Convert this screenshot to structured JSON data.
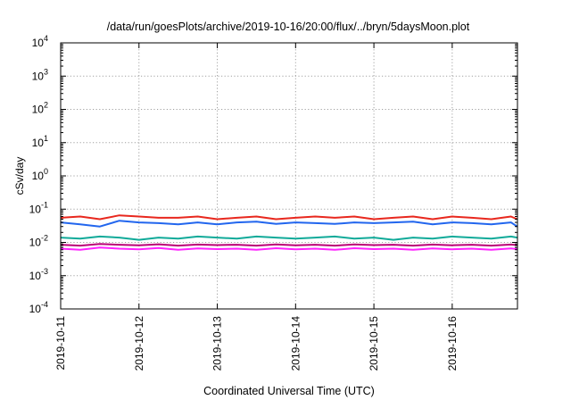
{
  "chart_data": {
    "type": "line",
    "title": "/data/run/goesPlots/archive/2019-10-16/20:00/flux/../bryn/5daysMoon.plot",
    "xlabel": "Coordinated Universal Time (UTC)",
    "ylabel": "cSv/day",
    "x_range": [
      "2019-10-11",
      "2019-10-16T20:00"
    ],
    "x_ticks": [
      "2019-10-11",
      "2019-10-12",
      "2019-10-13",
      "2019-10-14",
      "2019-10-15",
      "2019-10-16"
    ],
    "y_scale": "log",
    "ylim": [
      0.0001,
      10000
    ],
    "y_ticks": [
      {
        "base": "10",
        "exp": "4"
      },
      {
        "base": "10",
        "exp": "3"
      },
      {
        "base": "10",
        "exp": "2"
      },
      {
        "base": "10",
        "exp": "1"
      },
      {
        "base": "10",
        "exp": "0"
      },
      {
        "base": "10",
        "exp": "-1"
      },
      {
        "base": "10",
        "exp": "-2"
      },
      {
        "base": "10",
        "exp": "-3"
      },
      {
        "base": "10",
        "exp": "-4"
      }
    ],
    "grid": true,
    "legend": "none",
    "sample_days": [
      0,
      0.25,
      0.5,
      0.75,
      1,
      1.25,
      1.5,
      1.75,
      2,
      2.25,
      2.5,
      2.75,
      3,
      3.25,
      3.5,
      3.75,
      4,
      4.25,
      4.5,
      4.75,
      5,
      5.25,
      5.5,
      5.75,
      5.83
    ],
    "series": [
      {
        "color": "#e8281e",
        "values": [
          0.055,
          0.06,
          0.05,
          0.065,
          0.06,
          0.055,
          0.055,
          0.06,
          0.05,
          0.055,
          0.06,
          0.05,
          0.055,
          0.06,
          0.055,
          0.06,
          0.05,
          0.055,
          0.06,
          0.05,
          0.06,
          0.055,
          0.05,
          0.06,
          0.05
        ]
      },
      {
        "color": "#2266ee",
        "values": [
          0.04,
          0.035,
          0.03,
          0.045,
          0.04,
          0.038,
          0.035,
          0.04,
          0.035,
          0.04,
          0.042,
          0.036,
          0.04,
          0.038,
          0.036,
          0.04,
          0.038,
          0.04,
          0.042,
          0.035,
          0.04,
          0.038,
          0.035,
          0.04,
          0.03
        ]
      },
      {
        "color": "#11aa99",
        "values": [
          0.014,
          0.013,
          0.015,
          0.014,
          0.012,
          0.014,
          0.013,
          0.015,
          0.014,
          0.013,
          0.015,
          0.014,
          0.013,
          0.014,
          0.015,
          0.013,
          0.014,
          0.012,
          0.014,
          0.013,
          0.015,
          0.014,
          0.013,
          0.015,
          0.014
        ]
      },
      {
        "color": "#bb0077",
        "values": [
          0.0085,
          0.008,
          0.009,
          0.0085,
          0.0082,
          0.0088,
          0.008,
          0.0086,
          0.0083,
          0.0085,
          0.008,
          0.0087,
          0.0082,
          0.0085,
          0.008,
          0.0087,
          0.0083,
          0.0085,
          0.008,
          0.0086,
          0.0082,
          0.0085,
          0.008,
          0.0086,
          0.0083
        ]
      },
      {
        "color": "#ff22ff",
        "values": [
          0.0065,
          0.006,
          0.007,
          0.0065,
          0.0062,
          0.0068,
          0.006,
          0.0066,
          0.0063,
          0.0065,
          0.006,
          0.0067,
          0.0062,
          0.0065,
          0.006,
          0.0067,
          0.0063,
          0.0065,
          0.006,
          0.0066,
          0.0062,
          0.0065,
          0.006,
          0.0066,
          0.0063
        ]
      }
    ]
  }
}
